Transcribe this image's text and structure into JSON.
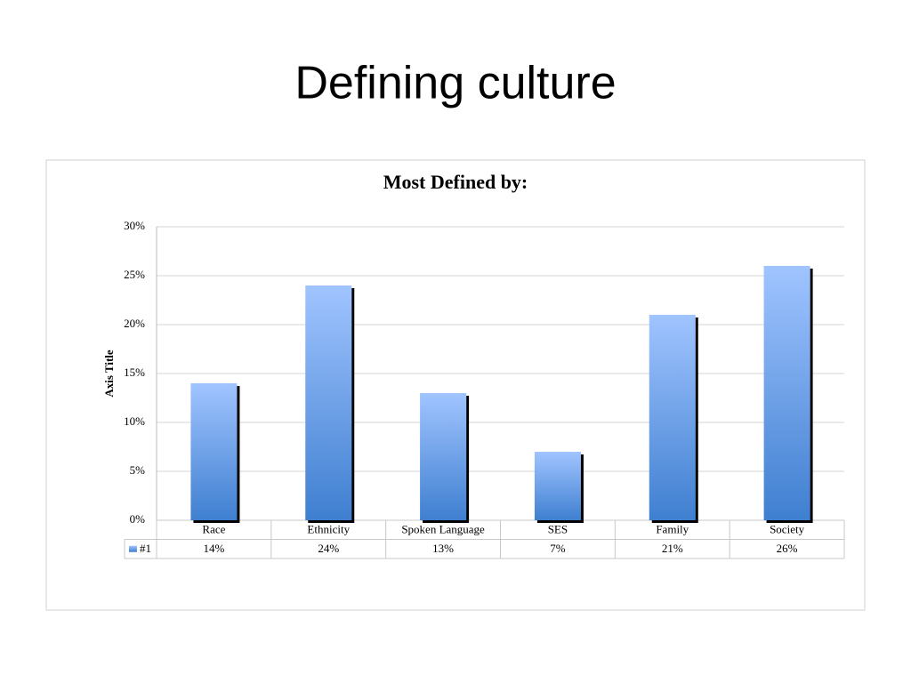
{
  "title": "Defining culture",
  "chart_data": {
    "type": "bar",
    "title": "Most Defined by:",
    "y_label": "Axis Title",
    "categories": [
      "Race",
      "Ethnicity",
      "Spoken Language",
      "SES",
      "Family",
      "Society"
    ],
    "series": [
      {
        "name": "#1",
        "color": "#3f7fd0",
        "values": [
          14,
          24,
          13,
          7,
          21,
          26
        ],
        "value_labels": [
          "14%",
          "24%",
          "13%",
          "7%",
          "21%",
          "26%"
        ]
      }
    ],
    "ylim": [
      0,
      30
    ],
    "yticks": [
      {
        "value": 0,
        "label": "0%"
      },
      {
        "value": 5,
        "label": "5%"
      },
      {
        "value": 10,
        "label": "10%"
      },
      {
        "value": 15,
        "label": "15%"
      },
      {
        "value": 20,
        "label": "20%"
      },
      {
        "value": 25,
        "label": "25%"
      },
      {
        "value": 30,
        "label": "30%"
      }
    ],
    "grid": true
  }
}
